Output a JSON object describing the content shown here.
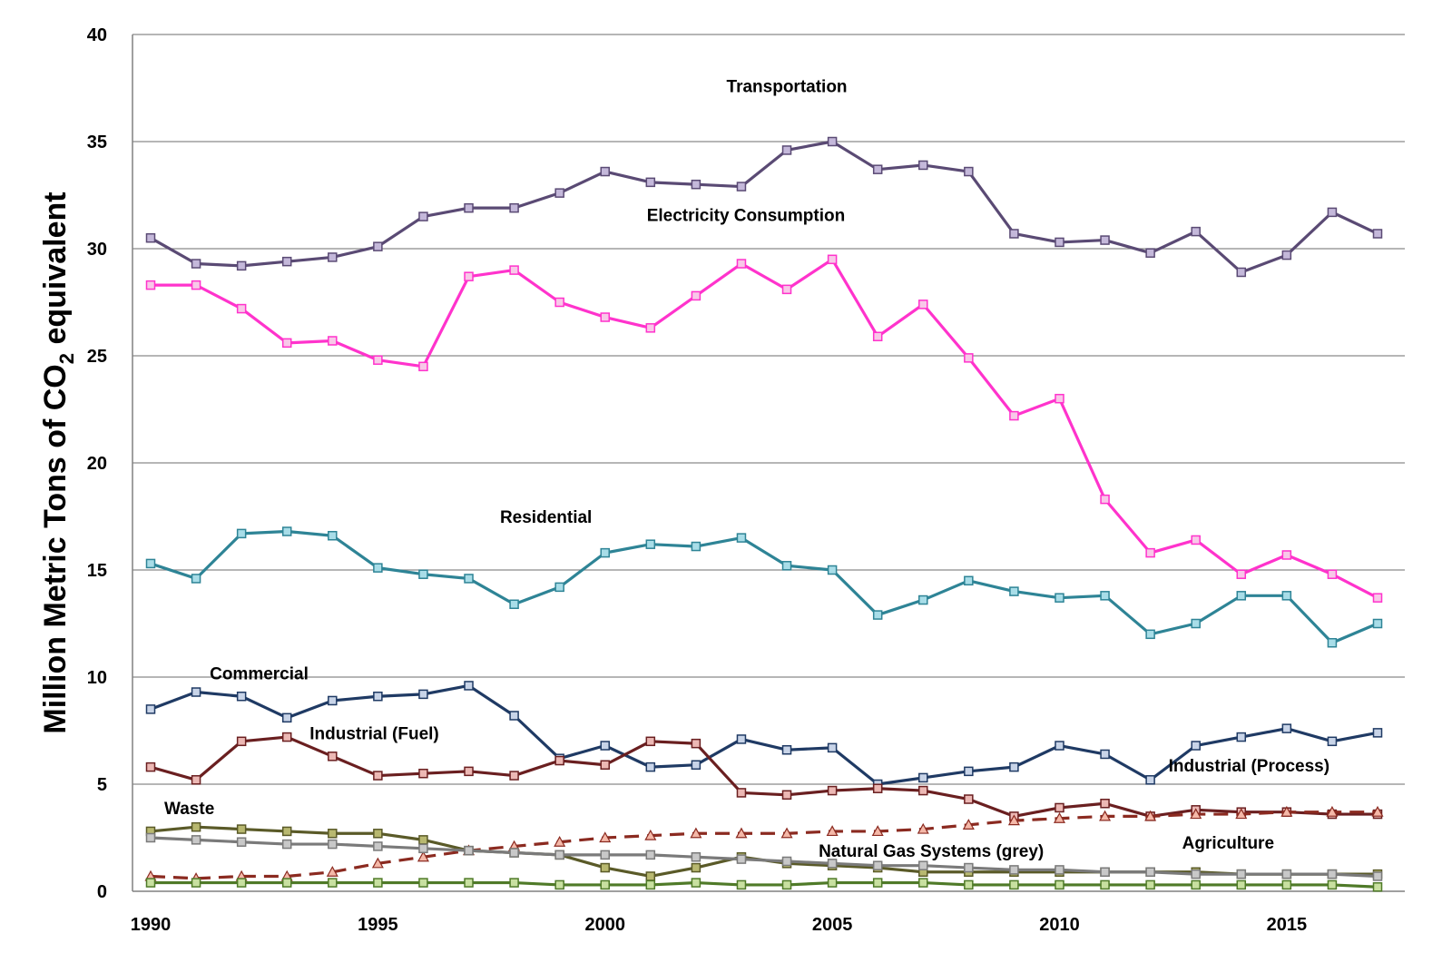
{
  "chart_data": {
    "type": "line",
    "title": "",
    "xlabel": "",
    "ylabel": "Million Metric Tons of CO2 equivalent",
    "ylabel_main": "Million Metric Tons of CO",
    "ylabel_sub": "2",
    "ylabel_tail": " equivalent",
    "xlim": [
      1990,
      2017
    ],
    "ylim": [
      0,
      40
    ],
    "grid": "horizontal",
    "x_ticks": [
      "1990",
      "1995",
      "2000",
      "2005",
      "2010",
      "2015"
    ],
    "y_ticks": [
      "0",
      "5",
      "10",
      "15",
      "20",
      "25",
      "30",
      "35",
      "40"
    ],
    "x": [
      1990,
      1991,
      1992,
      1993,
      1994,
      1995,
      1996,
      1997,
      1998,
      1999,
      2000,
      2001,
      2002,
      2003,
      2004,
      2005,
      2006,
      2007,
      2008,
      2009,
      2010,
      2011,
      2012,
      2013,
      2014,
      2015,
      2016,
      2017
    ],
    "series": [
      {
        "name": "Transportation",
        "line": "#5a4a74",
        "marker": "#c4b8da",
        "shape": "square",
        "dashed": false,
        "values": [
          30.5,
          29.3,
          29.2,
          29.4,
          29.6,
          30.1,
          31.5,
          31.9,
          31.9,
          32.6,
          33.6,
          33.1,
          33.0,
          32.9,
          34.6,
          35.0,
          33.7,
          33.9,
          33.6,
          30.7,
          30.3,
          30.4,
          29.8,
          30.8,
          28.9,
          29.7,
          31.7,
          30.7
        ]
      },
      {
        "name": "Electricity Consumption",
        "line": "#ff33cc",
        "marker": "#f8c8e8",
        "shape": "square",
        "dashed": false,
        "values": [
          28.3,
          28.3,
          27.2,
          25.6,
          25.7,
          24.8,
          24.5,
          28.7,
          29.0,
          27.5,
          26.8,
          26.3,
          27.8,
          29.3,
          28.1,
          29.5,
          25.9,
          27.4,
          24.9,
          22.2,
          23.0,
          18.3,
          15.8,
          16.4,
          14.8,
          15.7,
          14.8,
          13.7
        ]
      },
      {
        "name": "Residential",
        "line": "#2e8496",
        "marker": "#a8dde8",
        "shape": "square",
        "dashed": false,
        "values": [
          15.3,
          14.6,
          16.7,
          16.8,
          16.6,
          15.1,
          14.8,
          14.6,
          13.4,
          14.2,
          15.8,
          16.2,
          16.1,
          16.5,
          15.2,
          15.0,
          12.9,
          13.6,
          14.5,
          14.0,
          13.7,
          13.8,
          12.0,
          12.5,
          13.8,
          13.8,
          11.6,
          12.5
        ]
      },
      {
        "name": "Commercial",
        "line": "#1f3a64",
        "marker": "#c8d4e8",
        "shape": "square",
        "dashed": false,
        "values": [
          8.5,
          9.3,
          9.1,
          8.1,
          8.9,
          9.1,
          9.2,
          9.6,
          8.2,
          6.2,
          6.8,
          5.8,
          5.9,
          7.1,
          6.6,
          6.7,
          5.0,
          5.3,
          5.6,
          5.8,
          6.8,
          6.4,
          5.2,
          6.8,
          7.2,
          7.6,
          7.0,
          7.4
        ]
      },
      {
        "name": "Industrial (Fuel)",
        "line": "#6a1f20",
        "marker": "#ecb8b4",
        "shape": "square",
        "dashed": false,
        "values": [
          5.8,
          5.2,
          7.0,
          7.2,
          6.3,
          5.4,
          5.5,
          5.6,
          5.4,
          6.1,
          5.9,
          7.0,
          6.9,
          4.6,
          4.5,
          4.7,
          4.8,
          4.7,
          4.3,
          3.5,
          3.9,
          4.1,
          3.5,
          3.8,
          3.7,
          3.7,
          3.6,
          3.6
        ]
      },
      {
        "name": "Industrial (Process)",
        "line": "#8b2a20",
        "marker": "#f4b8a8",
        "shape": "triangle",
        "dashed": true,
        "values": [
          0.7,
          0.6,
          0.7,
          0.7,
          0.9,
          1.3,
          1.6,
          1.9,
          2.1,
          2.3,
          2.5,
          2.6,
          2.7,
          2.7,
          2.7,
          2.8,
          2.8,
          2.9,
          3.1,
          3.3,
          3.4,
          3.5,
          3.5,
          3.6,
          3.6,
          3.7,
          3.7,
          3.7
        ]
      },
      {
        "name": "Waste",
        "line": "#5a5a28",
        "marker": "#b8b870",
        "shape": "square",
        "dashed": false,
        "values": [
          2.8,
          3.0,
          2.9,
          2.8,
          2.7,
          2.7,
          2.4,
          1.9,
          1.8,
          1.7,
          1.1,
          0.7,
          1.1,
          1.6,
          1.3,
          1.2,
          1.1,
          0.9,
          0.9,
          0.9,
          0.9,
          0.9,
          0.9,
          0.9,
          0.8,
          0.8,
          0.8,
          0.8
        ]
      },
      {
        "name": "Natural Gas Systems (grey)",
        "line": "#7a7a7a",
        "marker": "#c8c8c8",
        "shape": "square",
        "dashed": false,
        "values": [
          2.5,
          2.4,
          2.3,
          2.2,
          2.2,
          2.1,
          2.0,
          1.9,
          1.8,
          1.7,
          1.7,
          1.7,
          1.6,
          1.5,
          1.4,
          1.3,
          1.2,
          1.2,
          1.1,
          1.0,
          1.0,
          0.9,
          0.9,
          0.8,
          0.8,
          0.8,
          0.8,
          0.7
        ]
      },
      {
        "name": "Agriculture",
        "line": "#4f7a28",
        "marker": "#c8e0a0",
        "shape": "square",
        "dashed": false,
        "values": [
          0.4,
          0.4,
          0.4,
          0.4,
          0.4,
          0.4,
          0.4,
          0.4,
          0.4,
          0.3,
          0.3,
          0.3,
          0.4,
          0.3,
          0.3,
          0.4,
          0.4,
          0.4,
          0.3,
          0.3,
          0.3,
          0.3,
          0.3,
          0.3,
          0.3,
          0.3,
          0.3,
          0.2
        ]
      }
    ],
    "annotations": [
      {
        "text": "Transportation",
        "year": 2004.0,
        "value": 37.3,
        "anchor": "middle"
      },
      {
        "text": "Electricity Consumption",
        "year": 2003.1,
        "value": 31.3,
        "anchor": "middle"
      },
      {
        "text": "Residential",
        "year": 1998.7,
        "value": 17.2,
        "anchor": "middle"
      },
      {
        "text": "Commercial",
        "year": 1991.3,
        "value": 9.9,
        "anchor": "start"
      },
      {
        "text": "Industrial (Fuel)",
        "year": 1993.5,
        "value": 7.1,
        "anchor": "start"
      },
      {
        "text": "Industrial (Process)",
        "year": 2012.4,
        "value": 5.6,
        "anchor": "start"
      },
      {
        "text": "Waste",
        "year": 1990.3,
        "value": 3.6,
        "anchor": "start"
      },
      {
        "text": "Natural Gas Systems (grey)",
        "year": 2004.7,
        "value": 1.6,
        "anchor": "start"
      },
      {
        "text": "Agriculture",
        "year": 2012.7,
        "value": 2.0,
        "anchor": "start"
      }
    ]
  }
}
